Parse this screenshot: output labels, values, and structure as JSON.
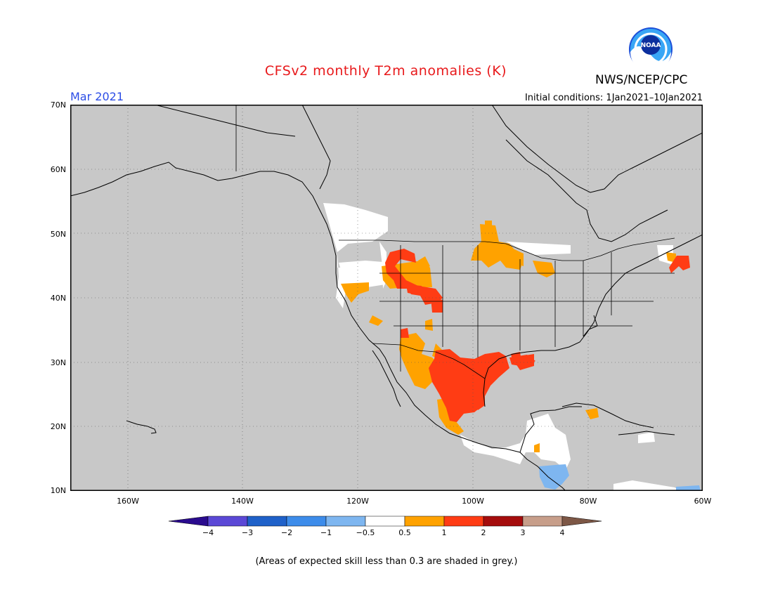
{
  "header": {
    "title": "CFSv2 monthly T2m anomalies (K)",
    "valid_month": "Mar 2021",
    "agency": "NWS/NCEP/CPC",
    "initial_conditions": "Initial conditions: 1Jan2021–10Jan2021",
    "logo_text": "NOAA"
  },
  "map": {
    "region": "North America",
    "lat_labels": [
      "70N",
      "60N",
      "50N",
      "40N",
      "30N",
      "20N",
      "10N"
    ],
    "lon_labels": [
      "160W",
      "140W",
      "120W",
      "100W",
      "80W",
      "60W"
    ],
    "ocean_color": "#c8c8c8",
    "grid": "dotted",
    "anomaly_regions": [
      {
        "name": "Pacific Northwest / BC",
        "class": "-0.5 to 0.5"
      },
      {
        "name": "Northern Rockies",
        "class": "1 to 2"
      },
      {
        "name": "Great Plains / Lake Superior",
        "class": "0.5 to 1"
      },
      {
        "name": "Texas / Northern Mexico",
        "class": "1 to 2"
      },
      {
        "name": "Louisiana coast",
        "class": "1 to 2"
      },
      {
        "name": "Nova Scotia",
        "class": "1 to 2"
      },
      {
        "name": "Central America",
        "class": "-1 to -0.5"
      }
    ]
  },
  "colorbar": {
    "labels": [
      "−4",
      "−3",
      "−2",
      "−1",
      "−0.5",
      "0.5",
      "1",
      "2",
      "3",
      "4"
    ],
    "colors": [
      "#2a0b8e",
      "#5b48d6",
      "#1f61c9",
      "#3d8cea",
      "#7eb6f0",
      "#ffffff",
      "#ffa200",
      "#ff3c14",
      "#a50d0d",
      "#c79e8a",
      "#7d5746"
    ]
  },
  "footnote": "(Areas of expected skill less than 0.3 are shaded in grey.)"
}
